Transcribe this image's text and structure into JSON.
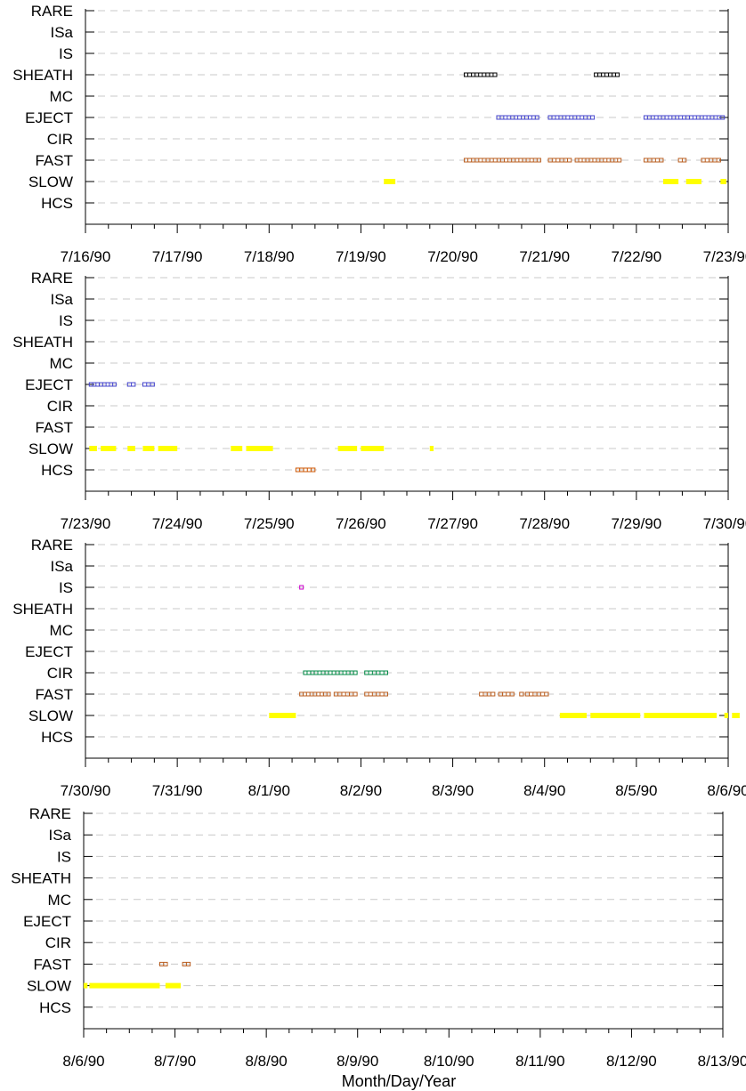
{
  "chart_data": {
    "type": "scatter",
    "xlabel": "Month/Day/Year",
    "categories": [
      "RARE",
      "ISa",
      "IS",
      "SHEATH",
      "MC",
      "EJECT",
      "CIR",
      "FAST",
      "SLOW",
      "HCS"
    ],
    "category_colors": {
      "SHEATH": "#000000",
      "EJECT": "#4444cc",
      "CIR": "#008844",
      "FAST": "#b85c1e",
      "SLOW": "#ffff00",
      "HCS": "#cc5500",
      "IS": "#cc00cc"
    },
    "grid": true,
    "grid_style": "dashed",
    "panels": [
      {
        "xlim": [
          "7/16/90",
          "7/23/90"
        ],
        "tick_labels": [
          "7/16/90",
          "7/17/90",
          "7/18/90",
          "7/19/90",
          "7/20/90",
          "7/21/90",
          "7/22/90",
          "7/23/90"
        ],
        "segments": [
          {
            "category": "SHEATH",
            "start": "7/20/90 03:00",
            "end": "7/20/90 11:30",
            "style": "box"
          },
          {
            "category": "SHEATH",
            "start": "7/21/90 13:00",
            "end": "7/21/90 19:30",
            "style": "box"
          },
          {
            "category": "EJECT",
            "start": "7/20/90 11:30",
            "end": "7/20/90 22:30",
            "style": "box"
          },
          {
            "category": "EJECT",
            "start": "7/21/90 01:00",
            "end": "7/21/90 13:00",
            "style": "box"
          },
          {
            "category": "EJECT",
            "start": "7/22/90 02:00",
            "end": "7/22/90 23:00",
            "style": "box"
          },
          {
            "category": "FAST",
            "start": "7/20/90 03:00",
            "end": "7/20/90 23:00",
            "style": "box"
          },
          {
            "category": "FAST",
            "start": "7/21/90 01:00",
            "end": "7/21/90 07:00",
            "style": "box"
          },
          {
            "category": "FAST",
            "start": "7/21/90 08:00",
            "end": "7/21/90 20:00",
            "style": "box"
          },
          {
            "category": "FAST",
            "start": "7/22/90 02:00",
            "end": "7/22/90 07:00",
            "style": "box"
          },
          {
            "category": "FAST",
            "start": "7/22/90 11:00",
            "end": "7/22/90 13:00",
            "style": "box"
          },
          {
            "category": "FAST",
            "start": "7/22/90 17:00",
            "end": "7/22/90 22:00",
            "style": "box"
          },
          {
            "category": "SLOW",
            "start": "7/19/90 06:00",
            "end": "7/19/90 09:00",
            "style": "fill"
          },
          {
            "category": "SLOW",
            "start": "7/22/90 07:00",
            "end": "7/22/90 11:00",
            "style": "fill"
          },
          {
            "category": "SLOW",
            "start": "7/22/90 13:00",
            "end": "7/22/90 17:00",
            "style": "fill"
          },
          {
            "category": "SLOW",
            "start": "7/22/90 22:00",
            "end": "7/22/90 23:30",
            "style": "fill"
          }
        ]
      },
      {
        "xlim": [
          "7/23/90",
          "7/30/90"
        ],
        "tick_labels": [
          "7/23/90",
          "7/24/90",
          "7/25/90",
          "7/26/90",
          "7/27/90",
          "7/28/90",
          "7/29/90",
          "7/30/90"
        ],
        "segments": [
          {
            "category": "EJECT",
            "start": "7/23/90 01:00",
            "end": "7/23/90 08:00",
            "style": "box"
          },
          {
            "category": "EJECT",
            "start": "7/23/90 11:00",
            "end": "7/23/90 13:00",
            "style": "box"
          },
          {
            "category": "EJECT",
            "start": "7/23/90 15:00",
            "end": "7/23/90 18:00",
            "style": "box"
          },
          {
            "category": "SLOW",
            "start": "7/23/90 01:00",
            "end": "7/23/90 03:00",
            "style": "fill"
          },
          {
            "category": "SLOW",
            "start": "7/23/90 04:00",
            "end": "7/23/90 08:00",
            "style": "fill"
          },
          {
            "category": "SLOW",
            "start": "7/23/90 11:00",
            "end": "7/23/90 13:00",
            "style": "fill"
          },
          {
            "category": "SLOW",
            "start": "7/23/90 15:00",
            "end": "7/23/90 18:00",
            "style": "fill"
          },
          {
            "category": "SLOW",
            "start": "7/23/90 19:00",
            "end": "7/24/90 00:00",
            "style": "fill"
          },
          {
            "category": "SLOW",
            "start": "7/24/90 14:00",
            "end": "7/24/90 17:00",
            "style": "fill"
          },
          {
            "category": "SLOW",
            "start": "7/24/90 18:00",
            "end": "7/25/90 01:00",
            "style": "fill"
          },
          {
            "category": "SLOW",
            "start": "7/25/90 18:00",
            "end": "7/25/90 23:00",
            "style": "fill"
          },
          {
            "category": "SLOW",
            "start": "7/26/90 00:00",
            "end": "7/26/90 06:00",
            "style": "fill"
          },
          {
            "category": "SLOW",
            "start": "7/26/90 18:00",
            "end": "7/26/90 19:00",
            "style": "fill"
          },
          {
            "category": "HCS",
            "start": "7/25/90 07:00",
            "end": "7/25/90 12:00",
            "style": "box"
          }
        ]
      },
      {
        "xlim": [
          "7/30/90",
          "8/6/90"
        ],
        "tick_labels": [
          "7/30/90",
          "7/31/90",
          "8/1/90",
          "8/2/90",
          "8/3/90",
          "8/4/90",
          "8/5/90",
          "8/6/90"
        ],
        "segments": [
          {
            "category": "IS",
            "start": "8/1/90 08:00",
            "end": "8/1/90 08:30",
            "style": "box"
          },
          {
            "category": "CIR",
            "start": "8/1/90 09:00",
            "end": "8/1/90 23:00",
            "style": "box"
          },
          {
            "category": "CIR",
            "start": "8/2/90 01:00",
            "end": "8/2/90 07:00",
            "style": "box"
          },
          {
            "category": "FAST",
            "start": "8/1/90 08:00",
            "end": "8/1/90 16:00",
            "style": "box"
          },
          {
            "category": "FAST",
            "start": "8/1/90 17:00",
            "end": "8/1/90 23:00",
            "style": "box"
          },
          {
            "category": "FAST",
            "start": "8/2/90 01:00",
            "end": "8/2/90 07:00",
            "style": "box"
          },
          {
            "category": "FAST",
            "start": "8/3/90 07:00",
            "end": "8/3/90 11:00",
            "style": "box"
          },
          {
            "category": "FAST",
            "start": "8/3/90 12:00",
            "end": "8/3/90 16:00",
            "style": "box"
          },
          {
            "category": "FAST",
            "start": "8/3/90 17:30",
            "end": "8/3/90 18:30",
            "style": "box"
          },
          {
            "category": "FAST",
            "start": "8/3/90 19:00",
            "end": "8/4/90 01:00",
            "style": "box"
          },
          {
            "category": "SLOW",
            "start": "8/1/90 00:00",
            "end": "8/1/90 07:00",
            "style": "fill"
          },
          {
            "category": "SLOW",
            "start": "8/4/90 04:00",
            "end": "8/4/90 11:00",
            "style": "fill"
          },
          {
            "category": "SLOW",
            "start": "8/4/90 12:00",
            "end": "8/5/90 01:00",
            "style": "fill"
          },
          {
            "category": "SLOW",
            "start": "8/5/90 02:00",
            "end": "8/5/90 21:00",
            "style": "fill"
          },
          {
            "category": "SLOW",
            "start": "8/5/90 23:00",
            "end": "8/6/90 00:00",
            "style": "fill"
          },
          {
            "category": "SLOW",
            "start": "8/6/90 01:00",
            "end": "8/6/90 03:00",
            "style": "fill"
          }
        ]
      },
      {
        "xlim": [
          "8/6/90",
          "8/13/90"
        ],
        "tick_labels": [
          "8/6/90",
          "8/7/90",
          "8/8/90",
          "8/9/90",
          "8/10/90",
          "8/11/90",
          "8/12/90",
          "8/13/90"
        ],
        "segments": [
          {
            "category": "FAST",
            "start": "8/6/90 20:00",
            "end": "8/6/90 22:00",
            "style": "box"
          },
          {
            "category": "FAST",
            "start": "8/7/90 02:00",
            "end": "8/7/90 04:00",
            "style": "box"
          },
          {
            "category": "SLOW",
            "start": "8/6/90 00:00",
            "end": "8/6/90 01:00",
            "style": "fill"
          },
          {
            "category": "SLOW",
            "start": "8/6/90 01:30",
            "end": "8/6/90 20:00",
            "style": "fill"
          },
          {
            "category": "SLOW",
            "start": "8/6/90 21:30",
            "end": "8/7/90 01:30",
            "style": "fill"
          }
        ]
      }
    ]
  }
}
